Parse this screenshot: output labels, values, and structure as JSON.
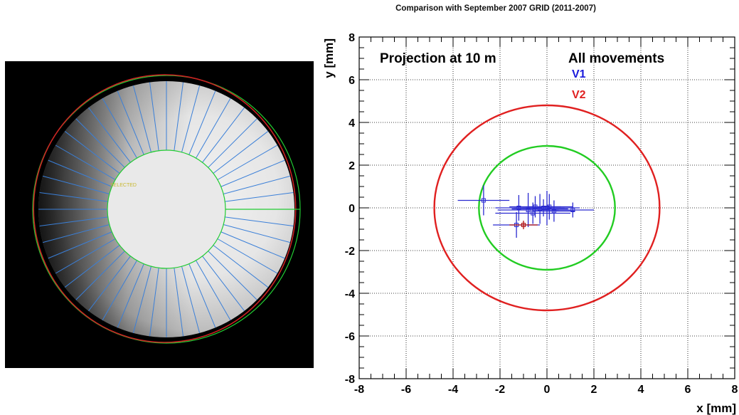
{
  "image": {
    "overlay_label": "SELECTED",
    "colors": {
      "background": "#000000",
      "fit_circle": "#cc2222",
      "reference_circles": "#22cc33",
      "rays": "#3a7fd8",
      "label": "#c8b830"
    }
  },
  "chart_data": {
    "type": "scatter",
    "title": "Comparison with September 2007 GRID (2011-2007)",
    "xlabel": "x [mm]",
    "ylabel": "y [mm]",
    "xlim": [
      -8,
      8
    ],
    "ylim": [
      -8,
      8
    ],
    "xticks": [
      "-8",
      "-6",
      "-4",
      "-2",
      "0",
      "2",
      "4",
      "6",
      "8"
    ],
    "yticks": [
      "-8",
      "-6",
      "-4",
      "-2",
      "0",
      "2",
      "4",
      "6",
      "8"
    ],
    "grid": true,
    "annotations": {
      "projection": "Projection at 10 m",
      "movements": "All movements",
      "v1": "V1",
      "v2": "V2"
    },
    "colors": {
      "v1": "#1a1adb",
      "v2": "#e02020",
      "green_circle": "#22cc22",
      "points": "#2a2ad0",
      "red_point": "#b01010"
    },
    "circles": [
      {
        "label": "V1",
        "radius": 2.9,
        "color": "#22cc22"
      },
      {
        "label": "V2",
        "radius": 4.8,
        "color": "#e02020"
      }
    ],
    "points": [
      {
        "x": -2.7,
        "y": 0.35,
        "xerr": 1.1,
        "yerr": 0.7
      },
      {
        "x": -1.2,
        "y": 0.0,
        "xerr": 1.0,
        "yerr": 0.6
      },
      {
        "x": -0.8,
        "y": -0.1,
        "xerr": 1.3,
        "yerr": 0.8
      },
      {
        "x": -0.5,
        "y": 0.05,
        "xerr": 1.1,
        "yerr": 0.5
      },
      {
        "x": -0.3,
        "y": -0.05,
        "xerr": 1.2,
        "yerr": 0.7
      },
      {
        "x": -0.15,
        "y": 0.0,
        "xerr": 0.9,
        "yerr": 0.4
      },
      {
        "x": 0.0,
        "y": 0.0,
        "xerr": 1.4,
        "yerr": 0.8
      },
      {
        "x": 0.1,
        "y": 0.05,
        "xerr": 1.0,
        "yerr": 0.6
      },
      {
        "x": -0.6,
        "y": -0.25,
        "xerr": 1.6,
        "yerr": 0.5
      },
      {
        "x": 0.3,
        "y": -0.15,
        "xerr": 0.9,
        "yerr": 0.5
      },
      {
        "x": 1.1,
        "y": -0.1,
        "xerr": 0.9,
        "yerr": 0.35
      },
      {
        "x": -1.3,
        "y": -0.8,
        "xerr": 1.0,
        "yerr": 0.6
      },
      {
        "x": -1.0,
        "y": -0.8,
        "xerr": 0.6,
        "yerr": 0.2,
        "color": "red"
      }
    ]
  }
}
